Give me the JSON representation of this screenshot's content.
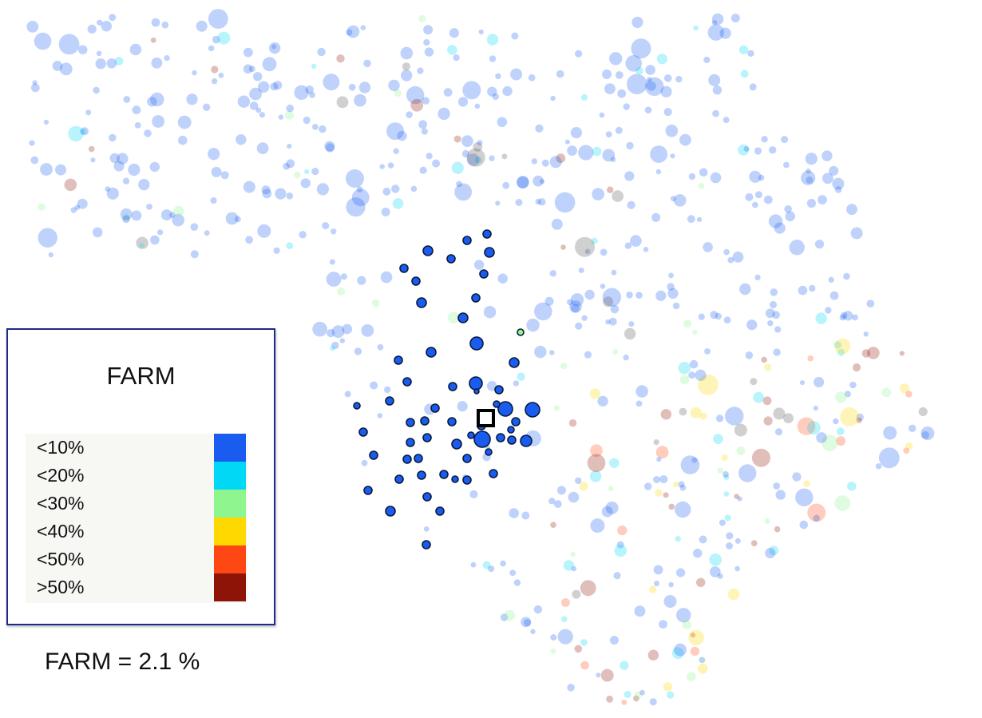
{
  "chart_data": {
    "type": "scatter",
    "title": "",
    "legend": {
      "title": "FARM",
      "placement": "left",
      "items": [
        {
          "label": "<10%",
          "color": "#1a5cf0"
        },
        {
          "label": "<20%",
          "color": "#00d8f6"
        },
        {
          "label": "<30%",
          "color": "#8ff58f"
        },
        {
          "label": "<40%",
          "color": "#ffd800"
        },
        {
          "label": "<50%",
          "color": "#ff4713"
        },
        {
          "label": ">50%",
          "color": "#8e1407"
        }
      ]
    },
    "selected_value_label": "FARM = 2.1 %",
    "highlighted_group": {
      "category": "<10%",
      "count": 58
    },
    "background_points_estimated": 650,
    "axes_visible": false,
    "grid": false
  }
}
